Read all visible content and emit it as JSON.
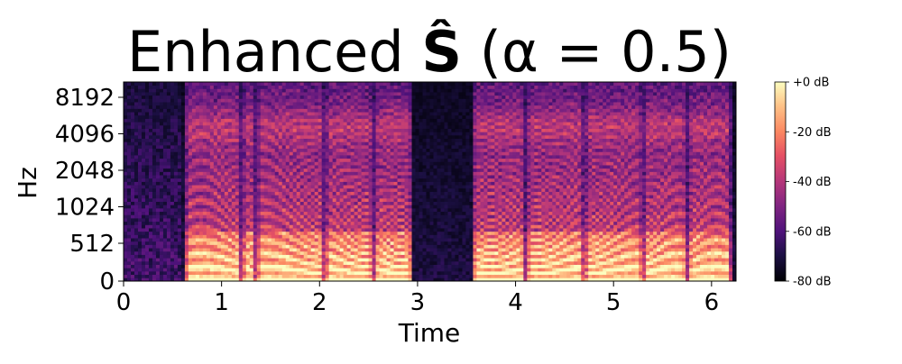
{
  "chart_data": {
    "type": "heatmap",
    "title_prefix": "Enhanced ",
    "title_symbol": "Ŝ",
    "title_suffix": " (α = 0.5)",
    "xlabel": "Time",
    "ylabel": "Hz",
    "xlim": [
      0,
      6.25
    ],
    "y_scale": "symlog",
    "y_ticks": [
      "0",
      "512",
      "1024",
      "2048",
      "4096",
      "8192"
    ],
    "y_tick_values": [
      0,
      512,
      1024,
      2048,
      4096,
      8192
    ],
    "x_ticks": [
      "0",
      "1",
      "2",
      "3",
      "4",
      "5",
      "6"
    ],
    "x_tick_values": [
      0,
      1,
      2,
      3,
      4,
      5,
      6
    ],
    "colorbar": {
      "ticks": [
        "+0 dB",
        "-20 dB",
        "-40 dB",
        "-60 dB",
        "-80 dB"
      ],
      "tick_values": [
        0,
        -20,
        -40,
        -60,
        -80
      ],
      "range": [
        -80,
        0
      ],
      "colormap": "magma"
    },
    "speech_segments": [
      {
        "start": 0.62,
        "end": 1.2
      },
      {
        "start": 1.2,
        "end": 1.35
      },
      {
        "start": 1.35,
        "end": 2.05
      },
      {
        "start": 2.05,
        "end": 2.55
      },
      {
        "start": 2.55,
        "end": 2.95
      },
      {
        "start": 3.55,
        "end": 4.1
      },
      {
        "start": 4.1,
        "end": 4.7
      },
      {
        "start": 4.7,
        "end": 5.3
      },
      {
        "start": 5.3,
        "end": 5.75
      },
      {
        "start": 5.75,
        "end": 6.2
      }
    ]
  }
}
